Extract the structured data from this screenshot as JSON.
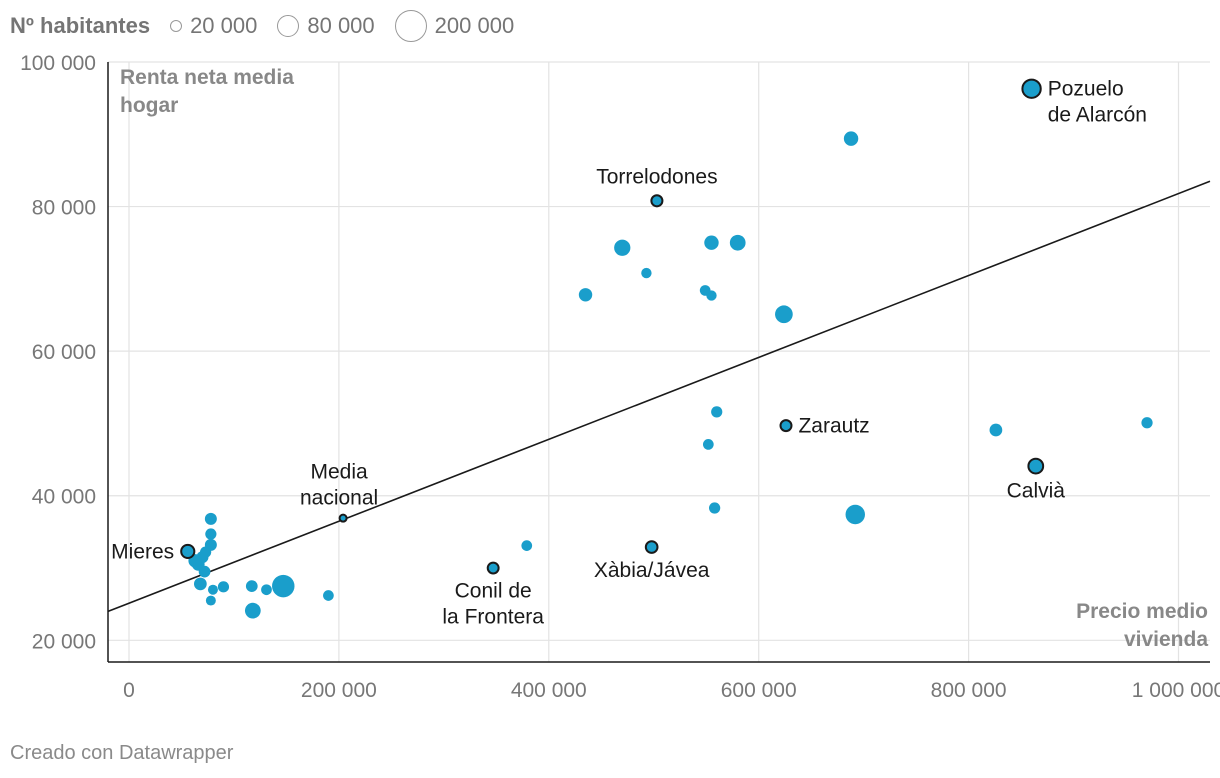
{
  "legend": {
    "title": "Nº habitantes",
    "items": [
      {
        "label": "20 000",
        "value": 20000
      },
      {
        "label": "80 000",
        "value": 80000
      },
      {
        "label": "200 000",
        "value": 200000
      }
    ]
  },
  "footer": "Creado con Datawrapper",
  "colors": {
    "point": "#1a9ecb",
    "text": "#1a1a1a",
    "axis_title": "#888888",
    "tick": "#777777",
    "grid": "#e3e3e3"
  },
  "chart_data": {
    "type": "scatter",
    "xlabel": "Precio medio vivienda",
    "ylabel": "Renta neta media hogar",
    "xlim": [
      -20000,
      1030000
    ],
    "ylim": [
      17000,
      100000
    ],
    "x_ticks": [
      {
        "value": 0,
        "label": "0"
      },
      {
        "value": 200000,
        "label": "200 000"
      },
      {
        "value": 400000,
        "label": "400 000"
      },
      {
        "value": 600000,
        "label": "600 000"
      },
      {
        "value": 800000,
        "label": "800 000"
      },
      {
        "value": 1000000,
        "label": "1 000 000"
      }
    ],
    "y_ticks": [
      {
        "value": 20000,
        "label": "20 000"
      },
      {
        "value": 40000,
        "label": "40 000"
      },
      {
        "value": 60000,
        "label": "60 000"
      },
      {
        "value": 80000,
        "label": "80 000"
      },
      {
        "value": 100000,
        "label": "100 000"
      }
    ],
    "trendline": {
      "x1": -20000,
      "y1": 24000,
      "x2": 1030000,
      "y2": 83500
    },
    "points": [
      {
        "name": "Pozuelo de Alarcón",
        "label_lines": [
          "Pozuelo",
          "de Alarcón"
        ],
        "x": 860000,
        "y": 96300,
        "pop": 87000,
        "highlight": true,
        "label_pos": "right"
      },
      {
        "name": "Torrelodones",
        "label_lines": [
          "Torrelodones"
        ],
        "x": 503000,
        "y": 80800,
        "pop": 24000,
        "highlight": true,
        "label_pos": "top"
      },
      {
        "name": "Zarautz",
        "label_lines": [
          "Zarautz"
        ],
        "x": 626000,
        "y": 49700,
        "pop": 23500,
        "highlight": true,
        "label_pos": "right"
      },
      {
        "name": "Calvià",
        "label_lines": [
          "Calvià"
        ],
        "x": 864000,
        "y": 44100,
        "pop": 51000,
        "highlight": true,
        "label_pos": "bottom"
      },
      {
        "name": "Mieres",
        "label_lines": [
          "Mieres"
        ],
        "x": 56000,
        "y": 32300,
        "pop": 38000,
        "highlight": true,
        "label_pos": "left"
      },
      {
        "name": "Xàbia/Jávea",
        "label_lines": [
          "Xàbia/Jávea"
        ],
        "x": 498000,
        "y": 32900,
        "pop": 28000,
        "highlight": true,
        "label_pos": "bottom"
      },
      {
        "name": "Conil de la Frontera",
        "label_lines": [
          "Conil de",
          "la Frontera"
        ],
        "x": 347000,
        "y": 30000,
        "pop": 23000,
        "highlight": true,
        "label_pos": "bottom"
      },
      {
        "name": "Media nacional",
        "label_lines": [
          "Media",
          "nacional"
        ],
        "x": 204000,
        "y": 36900,
        "pop": 6000,
        "highlight": true,
        "label_pos": "topleft"
      },
      {
        "name": "",
        "x": 688000,
        "y": 89400,
        "pop": 48000
      },
      {
        "name": "",
        "x": 470000,
        "y": 74300,
        "pop": 65000
      },
      {
        "name": "",
        "x": 555000,
        "y": 75000,
        "pop": 48000
      },
      {
        "name": "",
        "x": 580000,
        "y": 75000,
        "pop": 60000
      },
      {
        "name": "",
        "x": 493000,
        "y": 70800,
        "pop": 20000
      },
      {
        "name": "",
        "x": 435000,
        "y": 67800,
        "pop": 40000
      },
      {
        "name": "",
        "x": 549000,
        "y": 68400,
        "pop": 22000
      },
      {
        "name": "",
        "x": 555000,
        "y": 67700,
        "pop": 20000
      },
      {
        "name": "",
        "x": 624000,
        "y": 65100,
        "pop": 80000
      },
      {
        "name": "",
        "x": 560000,
        "y": 51600,
        "pop": 25000
      },
      {
        "name": "",
        "x": 552000,
        "y": 47100,
        "pop": 22000
      },
      {
        "name": "",
        "x": 826000,
        "y": 49100,
        "pop": 35000
      },
      {
        "name": "",
        "x": 970000,
        "y": 50100,
        "pop": 25000
      },
      {
        "name": "",
        "x": 558000,
        "y": 38300,
        "pop": 25000
      },
      {
        "name": "",
        "x": 692000,
        "y": 37400,
        "pop": 100000
      },
      {
        "name": "",
        "x": 379000,
        "y": 33100,
        "pop": 22000
      },
      {
        "name": "",
        "x": 190000,
        "y": 26200,
        "pop": 22000
      },
      {
        "name": "",
        "x": 147000,
        "y": 27500,
        "pop": 140000
      },
      {
        "name": "",
        "x": 131000,
        "y": 27000,
        "pop": 22000
      },
      {
        "name": "",
        "x": 117000,
        "y": 27500,
        "pop": 28000
      },
      {
        "name": "",
        "x": 118000,
        "y": 24100,
        "pop": 60000
      },
      {
        "name": "",
        "x": 90000,
        "y": 27400,
        "pop": 25000
      },
      {
        "name": "",
        "x": 80000,
        "y": 27000,
        "pop": 18000
      },
      {
        "name": "",
        "x": 78000,
        "y": 25500,
        "pop": 18000
      },
      {
        "name": "",
        "x": 68000,
        "y": 27800,
        "pop": 35000
      },
      {
        "name": "",
        "x": 72000,
        "y": 29500,
        "pop": 28000
      },
      {
        "name": "",
        "x": 66000,
        "y": 30500,
        "pop": 35000
      },
      {
        "name": "",
        "x": 70000,
        "y": 31500,
        "pop": 30000
      },
      {
        "name": "",
        "x": 63000,
        "y": 31000,
        "pop": 40000
      },
      {
        "name": "",
        "x": 73000,
        "y": 32200,
        "pop": 25000
      },
      {
        "name": "",
        "x": 78000,
        "y": 33200,
        "pop": 30000
      },
      {
        "name": "",
        "x": 78000,
        "y": 34700,
        "pop": 25000
      },
      {
        "name": "",
        "x": 78000,
        "y": 36800,
        "pop": 30000
      }
    ]
  }
}
